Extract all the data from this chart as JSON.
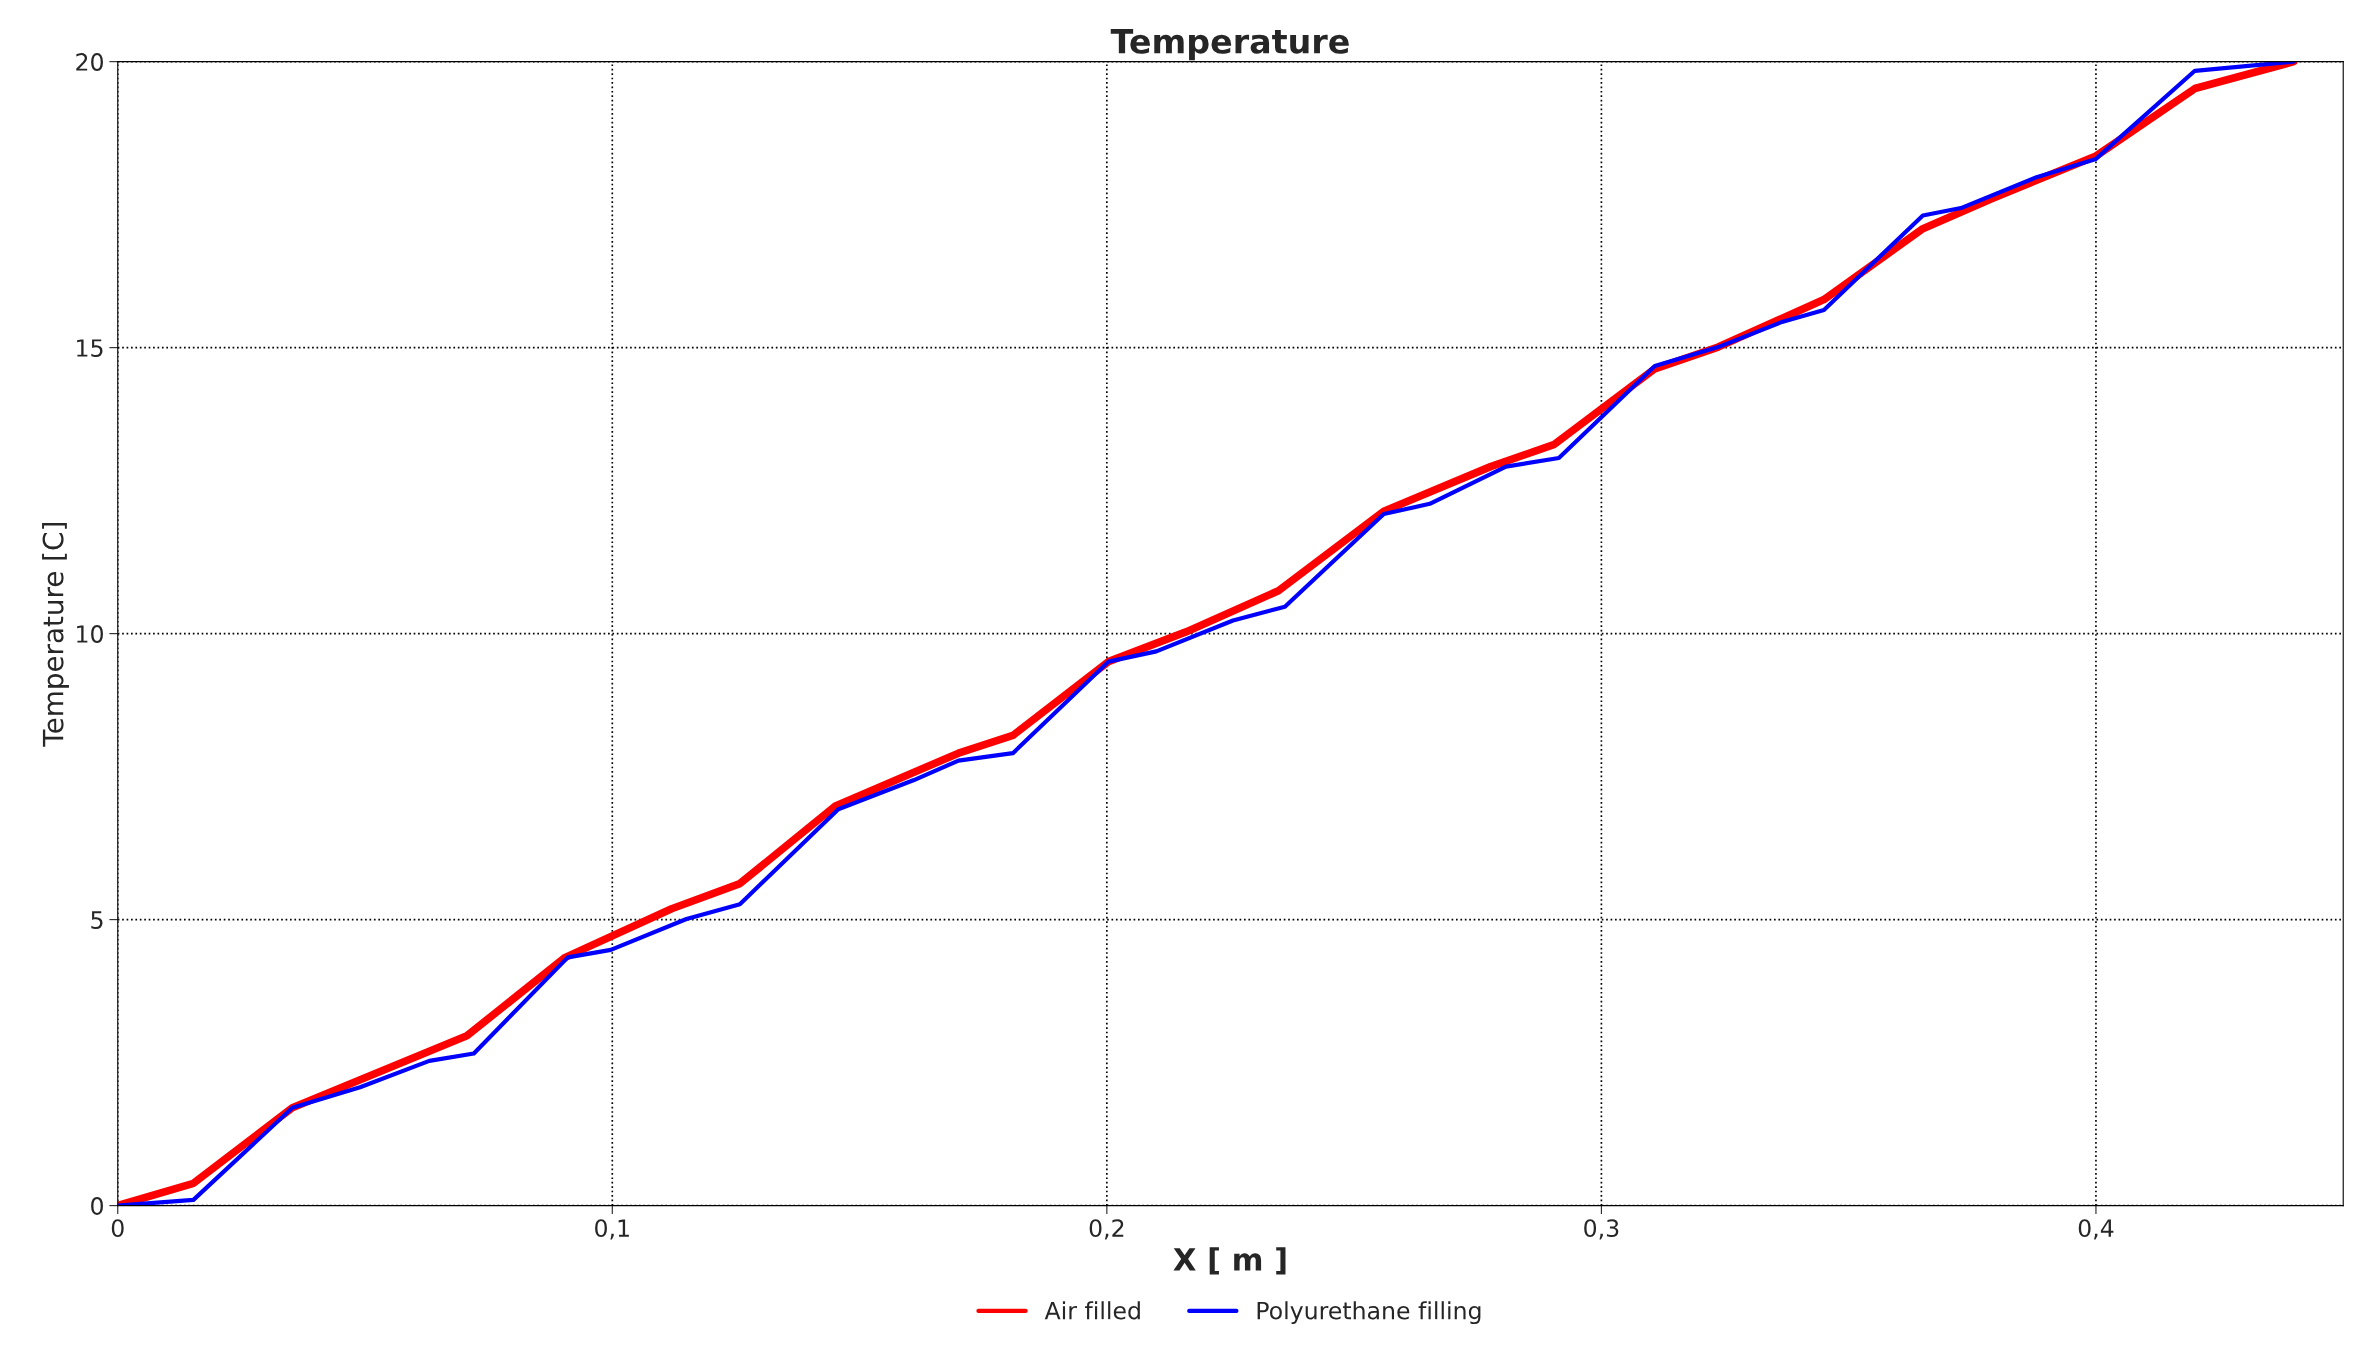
{
  "chart_data": {
    "type": "line",
    "title": "Temperature",
    "xlabel": "X [ m ]",
    "ylabel": "Temperature [C]",
    "xlim": [
      0,
      0.45
    ],
    "xticks": [
      0,
      {
        "value": 0.1,
        "label": "0,1"
      },
      {
        "value": 0.2,
        "label": "0,2"
      },
      {
        "value": 0.3,
        "label": "0,3"
      },
      {
        "value": 0.4,
        "label": "0,4"
      }
    ],
    "ylim": [
      0,
      20
    ],
    "yticks": [
      0,
      5,
      10,
      15,
      20
    ],
    "grid": true,
    "legend": "bottom",
    "marker": "none",
    "line_style": "solid",
    "series": [
      {
        "name": "Air filled",
        "color": "#ff0000",
        "x": [
          0,
          0.0153,
          0.0353,
          0.0706,
          0.0905,
          0.112,
          0.1258,
          0.145,
          0.17,
          0.181,
          0.2003,
          0.216,
          0.2347,
          0.256,
          0.2776,
          0.2905,
          0.3108,
          0.3236,
          0.345,
          0.365,
          0.3788,
          0.4,
          0.42,
          0.44
        ],
        "values": [
          0,
          0.39,
          1.71,
          2.97,
          4.34,
          5.19,
          5.63,
          6.98,
          7.91,
          8.22,
          9.51,
          10.03,
          10.75,
          12.14,
          12.92,
          13.31,
          14.63,
          15.01,
          15.84,
          17.08,
          17.6,
          18.35,
          19.53,
          20
        ]
      },
      {
        "name": "Polyurethane filling",
        "color": "#0000ff",
        "x": [
          0,
          0.0153,
          0.0353,
          0.049,
          0.063,
          0.072,
          0.091,
          0.0997,
          0.115,
          0.1258,
          0.1457,
          0.161,
          0.17,
          0.181,
          0.2003,
          0.21,
          0.2255,
          0.236,
          0.256,
          0.2653,
          0.2807,
          0.2914,
          0.3108,
          0.3236,
          0.3365,
          0.345,
          0.365,
          0.3727,
          0.388,
          0.4,
          0.42,
          0.44
        ],
        "values": [
          0,
          0.1,
          1.71,
          2.07,
          2.53,
          2.66,
          4.34,
          4.47,
          5.01,
          5.27,
          6.93,
          7.44,
          7.78,
          7.91,
          9.51,
          9.69,
          10.23,
          10.47,
          12.09,
          12.27,
          12.92,
          13.07,
          14.68,
          15.01,
          15.45,
          15.66,
          17.31,
          17.44,
          17.98,
          18.3,
          19.84,
          20
        ]
      }
    ]
  }
}
